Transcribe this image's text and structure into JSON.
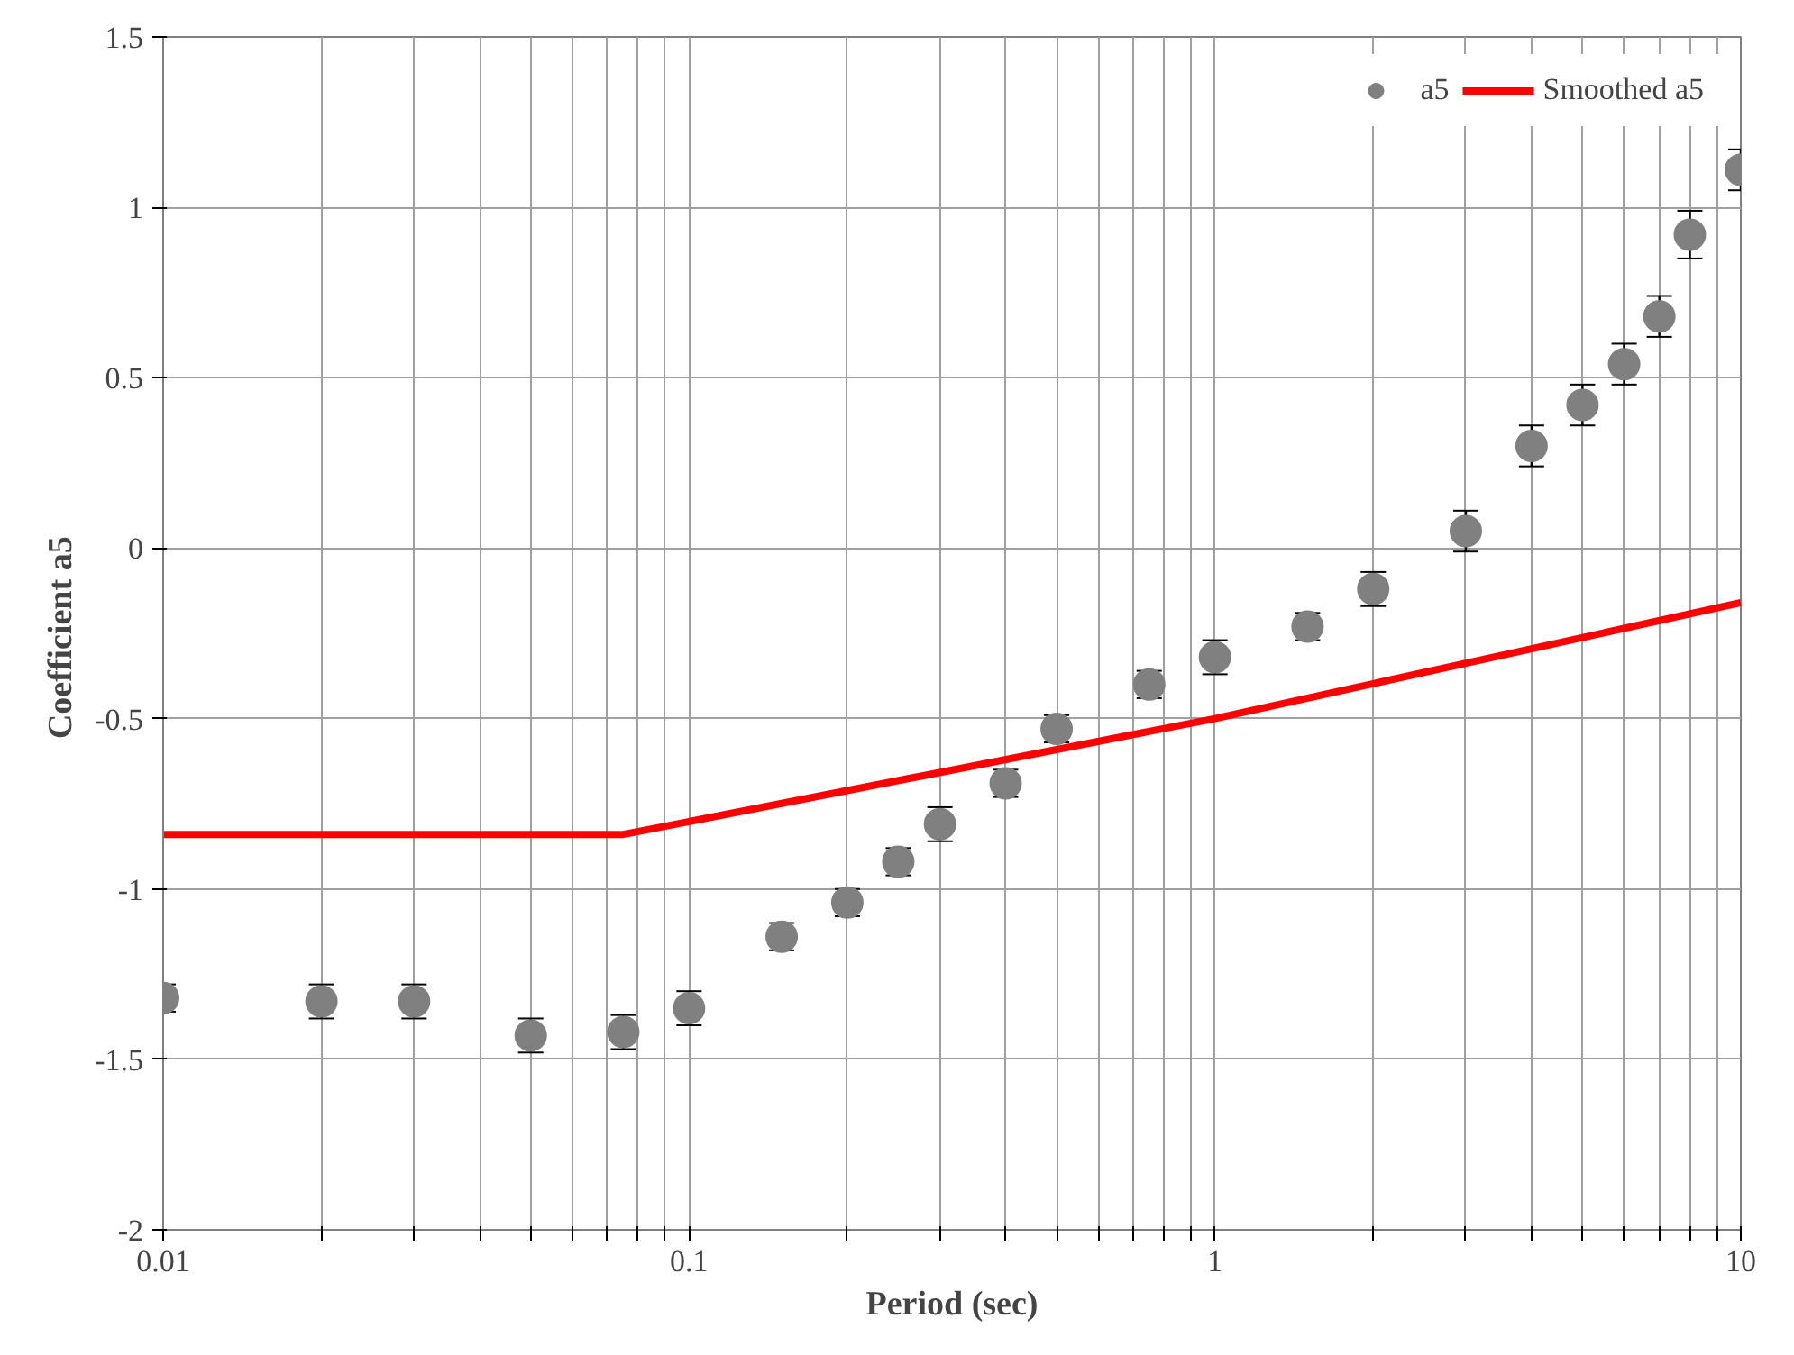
{
  "chart_data": {
    "type": "scatter",
    "xlabel": "Period (sec)",
    "ylabel": "Coefficient  a5",
    "log": "x",
    "xlim": [
      0.01,
      10
    ],
    "ylim": [
      -2,
      1.5
    ],
    "xticks": [
      0.01,
      {
        "value": 0.02,
        "label": null
      },
      {
        "value": 0.03,
        "label": null
      },
      {
        "value": 0.04,
        "label": null
      },
      {
        "value": 0.05,
        "label": null
      },
      {
        "value": 0.06,
        "label": null
      },
      {
        "value": 0.07,
        "label": null
      },
      {
        "value": 0.08,
        "label": null
      },
      {
        "value": 0.09,
        "label": null
      },
      0.1,
      {
        "value": 0.2,
        "label": null
      },
      {
        "value": 0.3,
        "label": null
      },
      {
        "value": 0.4,
        "label": null
      },
      {
        "value": 0.5,
        "label": null
      },
      {
        "value": 0.6,
        "label": null
      },
      {
        "value": 0.7,
        "label": null
      },
      {
        "value": 0.8,
        "label": null
      },
      {
        "value": 0.9,
        "label": null
      },
      1,
      {
        "value": 2,
        "label": null
      },
      {
        "value": 3,
        "label": null
      },
      {
        "value": 4,
        "label": null
      },
      {
        "value": 5,
        "label": null
      },
      {
        "value": 6,
        "label": null
      },
      {
        "value": 7,
        "label": null
      },
      {
        "value": 8,
        "label": null
      },
      {
        "value": 9,
        "label": null
      },
      10
    ],
    "yticks": [
      -2,
      -1.5,
      -1,
      -0.5,
      0,
      0.5,
      1,
      1.5
    ],
    "grid": true,
    "legend": "top right",
    "series": [
      {
        "name": "a5",
        "marker": "circle",
        "color": "#808080",
        "x": [
          0.01,
          0.02,
          0.03,
          0.05,
          0.075,
          0.1,
          0.15,
          0.2,
          0.25,
          0.3,
          0.4,
          0.5,
          0.75,
          1,
          1.5,
          2,
          3,
          4,
          5,
          6,
          7,
          8,
          10
        ],
        "values": [
          -1.32,
          -1.33,
          -1.33,
          -1.43,
          -1.42,
          -1.35,
          -1.14,
          -1.04,
          -0.92,
          -0.81,
          -0.69,
          -0.53,
          -0.4,
          -0.32,
          -0.23,
          -0.12,
          0.05,
          0.3,
          0.42,
          0.54,
          0.68,
          0.92,
          1.11
        ],
        "errors": [
          0.04,
          0.05,
          0.05,
          0.05,
          0.05,
          0.05,
          0.04,
          0.04,
          0.04,
          0.05,
          0.04,
          0.04,
          0.04,
          0.05,
          0.04,
          0.05,
          0.06,
          0.06,
          0.06,
          0.06,
          0.06,
          0.07,
          0.06
        ]
      },
      {
        "name": "Smoothed a5",
        "type": "line",
        "line_style": "solid",
        "color": "#ff0000",
        "x": [
          0.01,
          0.075,
          1,
          10
        ],
        "values": [
          -0.84,
          -0.84,
          -0.5,
          -0.16
        ]
      }
    ]
  }
}
